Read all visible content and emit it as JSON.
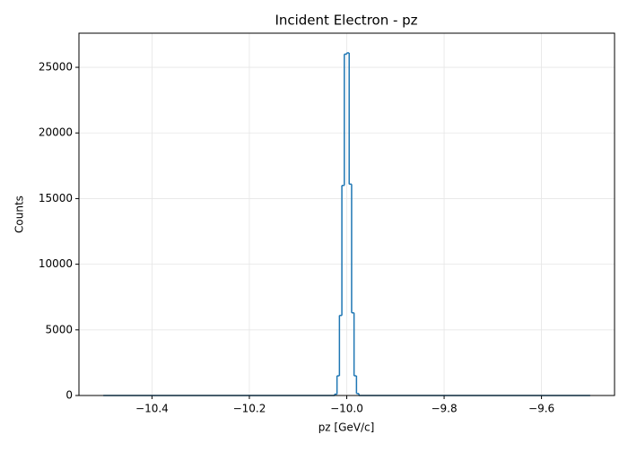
{
  "chart_data": {
    "type": "histogram",
    "title": "Incident Electron - pz",
    "xlabel": "pz [GeV/c]",
    "ylabel": "Counts",
    "bins": [
      -10.5,
      -10.025,
      -10.02,
      -10.015,
      -10.01,
      -10.005,
      -10.0,
      -9.995,
      -9.99,
      -9.985,
      -9.98,
      -9.975,
      -9.5
    ],
    "values": [
      0,
      100,
      1500,
      6100,
      16000,
      26000,
      26100,
      16100,
      6300,
      1500,
      150,
      0
    ],
    "color": "#1f77b4",
    "xlim": [
      -10.55,
      -9.45
    ],
    "xticks": [
      {
        "value": -10.4,
        "label": "−10.4"
      },
      {
        "value": -10.2,
        "label": "−10.2"
      },
      {
        "value": -10.0,
        "label": "−10.0"
      },
      {
        "value": -9.8,
        "label": "−9.8"
      },
      {
        "value": -9.6,
        "label": "−9.6"
      }
    ],
    "ylim": [
      0,
      27600
    ],
    "yticks": [
      0,
      5000,
      10000,
      15000,
      20000,
      25000
    ],
    "grid": true
  }
}
